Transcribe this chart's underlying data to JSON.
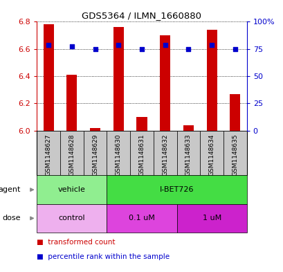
{
  "title": "GDS5364 / ILMN_1660880",
  "samples": [
    "GSM1148627",
    "GSM1148628",
    "GSM1148629",
    "GSM1148630",
    "GSM1148631",
    "GSM1148632",
    "GSM1148633",
    "GSM1148634",
    "GSM1148635"
  ],
  "red_values": [
    6.78,
    6.41,
    6.02,
    6.76,
    6.1,
    6.7,
    6.04,
    6.74,
    6.27
  ],
  "blue_values": [
    6.63,
    6.62,
    6.6,
    6.63,
    6.6,
    6.63,
    6.6,
    6.63,
    6.6
  ],
  "ylim": [
    6.0,
    6.8
  ],
  "y_ticks": [
    6.0,
    6.2,
    6.4,
    6.6,
    6.8
  ],
  "right_ticks": [
    0,
    25,
    50,
    75,
    100
  ],
  "right_tick_labels": [
    "0",
    "25",
    "50",
    "75",
    "100%"
  ],
  "agent_groups": [
    {
      "label": "vehicle",
      "start": 0,
      "end": 3,
      "color": "#90EE90"
    },
    {
      "label": "I-BET726",
      "start": 3,
      "end": 9,
      "color": "#44DD44"
    }
  ],
  "dose_groups": [
    {
      "label": "control",
      "start": 0,
      "end": 3,
      "color": "#EEB0EE"
    },
    {
      "label": "0.1 uM",
      "start": 3,
      "end": 6,
      "color": "#DD44DD"
    },
    {
      "label": "1 uM",
      "start": 6,
      "end": 9,
      "color": "#CC22CC"
    }
  ],
  "bar_color": "#CC0000",
  "dot_color": "#0000CC",
  "axis_color_left": "#CC0000",
  "axis_color_right": "#0000CC",
  "bg_sample": "#C8C8C8",
  "legend_items": [
    {
      "label": "transformed count",
      "color": "#CC0000"
    },
    {
      "label": "percentile rank within the sample",
      "color": "#0000CC"
    }
  ]
}
